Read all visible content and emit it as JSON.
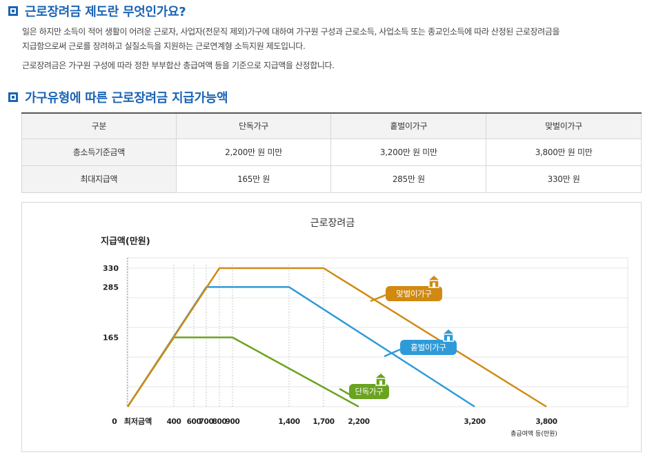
{
  "section1": {
    "title": "근로장려금 제도란 무엇인가요?",
    "para1_line1": "일은 하지만 소득이 적어 생활이 어려운 근로자, 사업자(전문직 제외)가구에 대하여 가구원 구성과 근로소득, 사업소득 또는 종교인소득에 따라 산정된 근로장려금을",
    "para1_line2": "지급함으로써 근로를 장려하고 실질소득을 지원하는 근로연계형 소득지원 제도입니다.",
    "para2": "근로장려금은 가구원 구성에 따라 정한 부부합산 총급여액 등을 기준으로 지급액을 산정합니다."
  },
  "section2": {
    "title": "가구유형에 따른 근로장려금 지급가능액"
  },
  "table": {
    "headers": [
      "구분",
      "단독가구",
      "홑벌이가구",
      "맞벌이가구"
    ],
    "rows": [
      [
        "총소득기준금액",
        "2,200만 원 미만",
        "3,200만 원 미만",
        "3,800만 원 미만"
      ],
      [
        "최대지급액",
        "165만 원",
        "285만 원",
        "330만 원"
      ]
    ]
  },
  "chart_data": {
    "type": "line",
    "title": "근로장려금",
    "ylabel": "지급액(만원)",
    "xlabel": "총급여액 등(만원)",
    "origin_label": "0",
    "x_start_label": "최저금액",
    "x_ticks": [
      400,
      600,
      700,
      800,
      900,
      1400,
      1700,
      2200,
      3200,
      3800
    ],
    "x_tick_labels": [
      "400",
      "600",
      "700",
      "800",
      "900",
      "1,400",
      "1,700",
      "2,200",
      "3,200",
      "3,800"
    ],
    "y_ticks": [
      165,
      285,
      330
    ],
    "y_tick_labels": [
      "165",
      "285",
      "330"
    ],
    "xlim": [
      0,
      3800
    ],
    "ylim": [
      0,
      330
    ],
    "series": [
      {
        "name": "단독가구",
        "color": "#6aa31f",
        "x": [
          0,
          400,
          900,
          2200
        ],
        "y": [
          0,
          165,
          165,
          0
        ]
      },
      {
        "name": "홑벌이가구",
        "color": "#2e9bd8",
        "x": [
          0,
          700,
          1400,
          3200
        ],
        "y": [
          0,
          285,
          285,
          0
        ]
      },
      {
        "name": "맞벌이가구",
        "color": "#d08a12",
        "x": [
          0,
          800,
          1700,
          3800
        ],
        "y": [
          0,
          330,
          330,
          0
        ]
      }
    ],
    "grid": true
  }
}
